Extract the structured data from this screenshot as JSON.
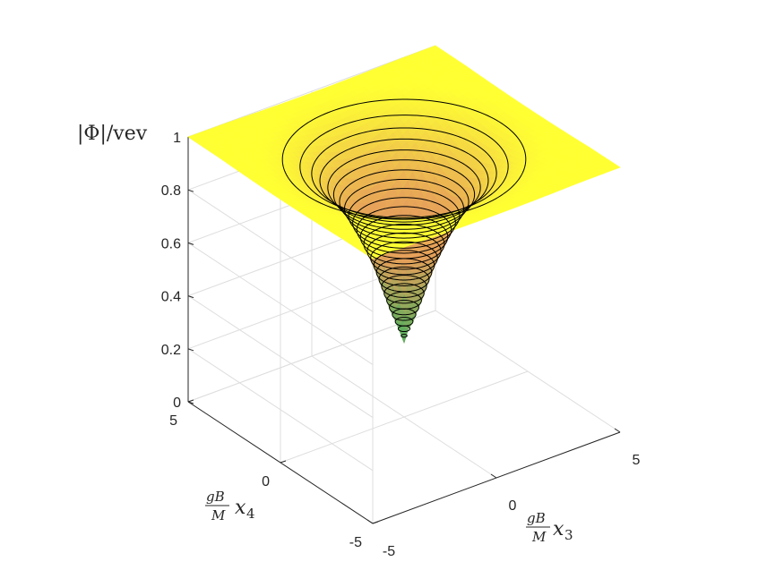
{
  "chart_data": {
    "type": "surface",
    "title": "",
    "xlabel": {
      "frac_num": "gB",
      "frac_den": "M",
      "var": "x",
      "sub": "3"
    },
    "ylabel": {
      "frac_num": "gB",
      "frac_den": "M",
      "var": "x",
      "sub": "4"
    },
    "zlabel": "|Φ|/vev",
    "xlim": [
      -5,
      5
    ],
    "ylim": [
      -5,
      5
    ],
    "zlim": [
      0,
      1
    ],
    "x_ticks": [
      "-5",
      "0",
      "5"
    ],
    "y_ticks": [
      "-5",
      "0",
      "5"
    ],
    "z_ticks": [
      "0",
      "0.2",
      "0.4",
      "0.6",
      "0.8",
      "1"
    ],
    "grid": true,
    "colormap": "summer",
    "surface": {
      "function": "radial_profile",
      "radius_values": [
        0,
        0.5,
        1,
        1.5,
        2,
        2.5,
        3,
        3.5,
        4,
        4.5,
        5,
        6,
        7.1
      ],
      "profile_values": [
        0.28,
        0.42,
        0.58,
        0.7,
        0.8,
        0.87,
        0.92,
        0.955,
        0.975,
        0.987,
        0.994,
        0.999,
        1.0
      ],
      "plateau": 1.0
    },
    "contour_levels_count": 26,
    "colors": {
      "low": "#54b05e",
      "mid": "#e6a05a",
      "high": "#ffff33",
      "contour": "#000000",
      "grid": "#dedede",
      "axis": "#262626"
    }
  }
}
